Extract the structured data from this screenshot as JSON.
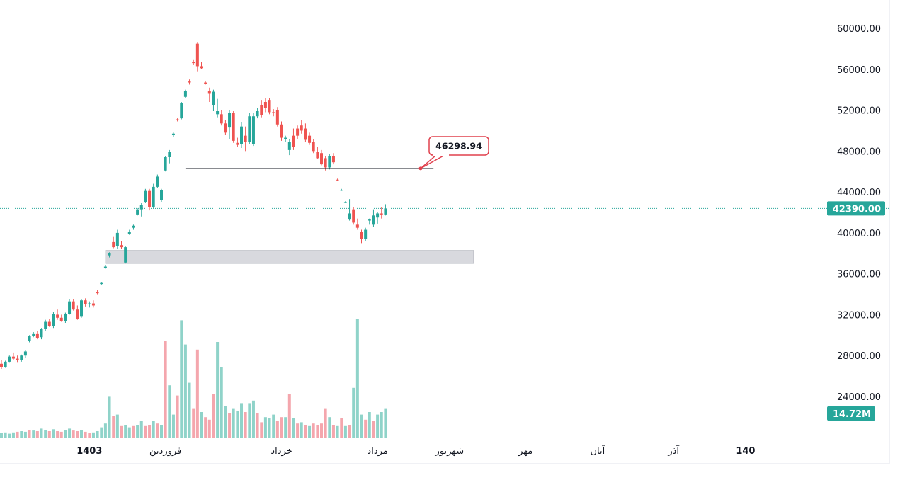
{
  "colors": {
    "up": "#26a69a",
    "down": "#ef5350",
    "up_volume": "#8fd3c9",
    "down_volume": "#f4a6ad",
    "price_line": "#26a69a",
    "callout_border": "#e0404d",
    "zone_fill": "#d8d9de",
    "axis_border": "#e0e3eb",
    "text": "#131722"
  },
  "chart_data": {
    "type": "candlestick",
    "ylim": [
      20000,
      62500
    ],
    "y_ticks": [
      "60000.00",
      "56000.00",
      "52000.00",
      "48000.00",
      "44000.00",
      "40000.00",
      "36000.00",
      "32000.00",
      "28000.00",
      "24000.00"
    ],
    "y_tick_values": [
      60000,
      56000,
      52000,
      48000,
      44000,
      40000,
      36000,
      32000,
      28000,
      24000
    ],
    "x_ticks": [
      {
        "label": "آبان",
        "bold": false,
        "at": -6
      },
      {
        "label": "1403",
        "bold": true,
        "at": 22
      },
      {
        "label": "فروردین",
        "bold": false,
        "at": 41
      },
      {
        "label": "خرداد",
        "bold": false,
        "at": 70
      },
      {
        "label": "مرداد",
        "bold": false,
        "at": 94
      },
      {
        "label": "شهریور",
        "bold": false,
        "at": 112
      },
      {
        "label": "مهر",
        "bold": false,
        "at": 131
      },
      {
        "label": "آبان",
        "bold": false,
        "at": 149
      },
      {
        "label": "آذر",
        "bold": false,
        "at": 168
      },
      {
        "label": "140",
        "bold": true,
        "at": 186
      }
    ],
    "last_price": {
      "value": 42390,
      "label": "42390.00"
    },
    "last_volume": {
      "label": "14.72M"
    },
    "horizontal_line": {
      "value": 46298.94,
      "label": "46298.94",
      "x_from": 46,
      "x_to": 108
    },
    "support_zone": {
      "low": 37000,
      "high": 38300,
      "x_from": 26,
      "x_to": 118
    },
    "candles": [
      [
        0,
        27200,
        27600,
        26700,
        26900
      ],
      [
        1,
        26900,
        27500,
        26800,
        27400
      ],
      [
        2,
        27400,
        28000,
        27300,
        27900
      ],
      [
        3,
        27900,
        28300,
        27600,
        27700
      ],
      [
        4,
        27700,
        28000,
        27300,
        27600
      ],
      [
        5,
        27600,
        28100,
        27400,
        28000
      ],
      [
        6,
        28000,
        28500,
        27800,
        28400
      ],
      [
        7,
        29400,
        30000,
        29300,
        29900
      ],
      [
        8,
        29900,
        30300,
        29800,
        30100
      ],
      [
        9,
        30100,
        30400,
        29600,
        29700
      ],
      [
        10,
        29800,
        30700,
        29600,
        30600
      ],
      [
        11,
        30600,
        31500,
        30400,
        31300
      ],
      [
        12,
        31300,
        31600,
        30800,
        30900
      ],
      [
        13,
        30900,
        32300,
        30700,
        32100
      ],
      [
        14,
        32000,
        32500,
        31500,
        31700
      ],
      [
        15,
        31700,
        32000,
        31300,
        31400
      ],
      [
        16,
        31400,
        32200,
        31200,
        32100
      ],
      [
        17,
        32100,
        33500,
        32000,
        33300
      ],
      [
        18,
        33300,
        33500,
        32400,
        32500
      ],
      [
        19,
        32500,
        32900,
        31500,
        31600
      ],
      [
        20,
        31800,
        33500,
        31700,
        33400
      ],
      [
        21,
        33400,
        33600,
        32800,
        33000
      ],
      [
        22,
        33000,
        33300,
        32700,
        33100
      ],
      [
        23,
        33100,
        33400,
        32700,
        32900
      ],
      [
        24,
        34200,
        34400,
        34000,
        34100
      ],
      [
        25,
        35000,
        35200,
        34900,
        35100
      ],
      [
        26,
        36600,
        36800,
        36500,
        36700
      ],
      [
        27,
        37800,
        38100,
        37600,
        38000
      ],
      [
        28,
        39100,
        39600,
        38500,
        38600
      ],
      [
        29,
        38700,
        40300,
        38400,
        40000
      ],
      [
        30,
        38800,
        39200,
        38400,
        38600
      ],
      [
        31,
        37100,
        38700,
        37000,
        38600
      ],
      [
        32,
        39900,
        40300,
        39800,
        40100
      ],
      [
        33,
        40500,
        40800,
        40300,
        40700
      ],
      [
        34,
        41800,
        42400,
        41700,
        42300
      ],
      [
        35,
        42300,
        42900,
        41600,
        42700
      ],
      [
        36,
        43000,
        44300,
        42900,
        44100
      ],
      [
        37,
        44100,
        44300,
        42200,
        42500
      ],
      [
        38,
        42500,
        44800,
        42400,
        44500
      ],
      [
        39,
        44500,
        45700,
        44400,
        45500
      ],
      [
        40,
        43200,
        44300,
        43000,
        44200
      ],
      [
        41,
        46100,
        47500,
        46000,
        47400
      ],
      [
        42,
        47400,
        48100,
        46800,
        47900
      ],
      [
        43,
        49600,
        49800,
        49400,
        49700
      ],
      [
        44,
        51100,
        51200,
        50900,
        51000
      ],
      [
        45,
        51200,
        52800,
        51100,
        52700
      ],
      [
        46,
        53300,
        54000,
        53200,
        53900
      ],
      [
        47,
        54800,
        55000,
        54500,
        54700
      ],
      [
        48,
        56700,
        56900,
        56400,
        56600
      ],
      [
        49,
        58500,
        58600,
        55800,
        56300
      ],
      [
        50,
        56300,
        56700,
        56000,
        56100
      ],
      [
        51,
        54700,
        54800,
        54500,
        54600
      ],
      [
        52,
        53900,
        54200,
        52800,
        53600
      ],
      [
        53,
        52500,
        54000,
        51900,
        53800
      ],
      [
        54,
        51600,
        53100,
        51300,
        51900
      ],
      [
        55,
        51600,
        52000,
        50500,
        50700
      ],
      [
        56,
        50700,
        51000,
        49600,
        49800
      ],
      [
        57,
        50300,
        52000,
        49200,
        51700
      ],
      [
        58,
        51700,
        51900,
        48800,
        49000
      ],
      [
        59,
        48800,
        49300,
        48400,
        48600
      ],
      [
        60,
        48700,
        50800,
        48300,
        50400
      ],
      [
        61,
        49500,
        50400,
        48000,
        48900
      ],
      [
        62,
        48900,
        51700,
        48700,
        51400
      ],
      [
        63,
        48700,
        51700,
        48500,
        51400
      ],
      [
        64,
        51400,
        52200,
        51200,
        51900
      ],
      [
        65,
        52500,
        53000,
        51300,
        51500
      ],
      [
        66,
        52800,
        53200,
        51800,
        52200
      ],
      [
        67,
        53000,
        53200,
        51600,
        51800
      ],
      [
        68,
        51800,
        52100,
        51400,
        51700
      ],
      [
        69,
        52000,
        52300,
        50400,
        50600
      ],
      [
        70,
        50600,
        50900,
        49000,
        49300
      ],
      [
        71,
        49200,
        49500,
        48900,
        49300
      ],
      [
        72,
        48100,
        49200,
        47600,
        48900
      ],
      [
        73,
        49500,
        50200,
        48100,
        48400
      ],
      [
        74,
        50200,
        50500,
        49200,
        49500
      ],
      [
        75,
        50500,
        51000,
        49700,
        50000
      ],
      [
        76,
        50200,
        50700,
        48900,
        49100
      ],
      [
        77,
        49500,
        49800,
        48600,
        48800
      ],
      [
        78,
        48900,
        49200,
        47800,
        48000
      ],
      [
        79,
        47900,
        48400,
        47200,
        47300
      ],
      [
        80,
        47800,
        48100,
        46600,
        46700
      ],
      [
        81,
        47300,
        47500,
        46100,
        46400
      ],
      [
        82,
        46400,
        47700,
        46200,
        47500
      ],
      [
        83,
        47500,
        47800,
        46700,
        46900
      ],
      [
        84,
        45200,
        45300,
        45100,
        45150
      ],
      [
        85,
        44200,
        44300,
        44100,
        44200
      ],
      [
        86,
        43000,
        43100,
        42900,
        43000
      ],
      [
        87,
        41300,
        43300,
        41200,
        41900
      ],
      [
        88,
        42300,
        42500,
        40800,
        41000
      ],
      [
        89,
        40800,
        41400,
        40300,
        40500
      ],
      [
        90,
        40100,
        40300,
        39000,
        39400
      ],
      [
        91,
        39400,
        40500,
        39200,
        40300
      ],
      [
        92,
        41200,
        41400,
        40800,
        41300
      ],
      [
        93,
        40800,
        42300,
        40600,
        41700
      ],
      [
        94,
        41500,
        42000,
        40900,
        41900
      ],
      [
        95,
        41900,
        42500,
        41400,
        41800
      ],
      [
        96,
        41800,
        42800,
        41700,
        42390
      ]
    ],
    "volumes": [
      [
        0,
        0.35,
        "up"
      ],
      [
        1,
        0.4,
        "up"
      ],
      [
        2,
        0.3,
        "up"
      ],
      [
        3,
        0.4,
        "up"
      ],
      [
        4,
        0.45,
        "down"
      ],
      [
        5,
        0.5,
        "up"
      ],
      [
        6,
        0.45,
        "up"
      ],
      [
        7,
        0.6,
        "down"
      ],
      [
        8,
        0.55,
        "up"
      ],
      [
        9,
        0.5,
        "down"
      ],
      [
        10,
        0.7,
        "up"
      ],
      [
        11,
        0.6,
        "up"
      ],
      [
        12,
        0.5,
        "down"
      ],
      [
        13,
        0.65,
        "up"
      ],
      [
        14,
        0.5,
        "down"
      ],
      [
        15,
        0.45,
        "down"
      ],
      [
        16,
        0.6,
        "up"
      ],
      [
        17,
        0.7,
        "up"
      ],
      [
        18,
        0.55,
        "down"
      ],
      [
        19,
        0.5,
        "down"
      ],
      [
        20,
        0.6,
        "up"
      ],
      [
        21,
        0.45,
        "down"
      ],
      [
        22,
        0.35,
        "down"
      ],
      [
        23,
        0.4,
        "up"
      ],
      [
        24,
        0.5,
        "up"
      ],
      [
        25,
        0.8,
        "up"
      ],
      [
        26,
        1.1,
        "up"
      ],
      [
        27,
        3.2,
        "up"
      ],
      [
        28,
        1.7,
        "down"
      ],
      [
        29,
        1.8,
        "up"
      ],
      [
        30,
        0.9,
        "down"
      ],
      [
        31,
        1.0,
        "up"
      ],
      [
        32,
        0.8,
        "up"
      ],
      [
        33,
        0.9,
        "down"
      ],
      [
        34,
        1.0,
        "up"
      ],
      [
        35,
        1.3,
        "up"
      ],
      [
        36,
        0.9,
        "down"
      ],
      [
        37,
        1.0,
        "down"
      ],
      [
        38,
        1.3,
        "up"
      ],
      [
        39,
        1.1,
        "down"
      ],
      [
        40,
        1.0,
        "up"
      ],
      [
        41,
        7.6,
        "down"
      ],
      [
        42,
        4.1,
        "up"
      ],
      [
        43,
        1.8,
        "up"
      ],
      [
        44,
        3.3,
        "down"
      ],
      [
        45,
        9.2,
        "up"
      ],
      [
        46,
        7.3,
        "up"
      ],
      [
        47,
        4.3,
        "up"
      ],
      [
        48,
        2.3,
        "down"
      ],
      [
        49,
        6.9,
        "down"
      ],
      [
        50,
        2.0,
        "up"
      ],
      [
        51,
        1.6,
        "down"
      ],
      [
        52,
        1.4,
        "down"
      ],
      [
        53,
        3.4,
        "down"
      ],
      [
        54,
        7.5,
        "up"
      ],
      [
        55,
        5.5,
        "up"
      ],
      [
        56,
        2.5,
        "up"
      ],
      [
        57,
        1.9,
        "down"
      ],
      [
        58,
        2.3,
        "up"
      ],
      [
        59,
        2.1,
        "up"
      ],
      [
        60,
        2.7,
        "up"
      ],
      [
        61,
        2.0,
        "down"
      ],
      [
        62,
        2.7,
        "up"
      ],
      [
        63,
        2.9,
        "up"
      ],
      [
        64,
        1.9,
        "down"
      ],
      [
        65,
        1.2,
        "down"
      ],
      [
        66,
        1.6,
        "up"
      ],
      [
        67,
        1.5,
        "up"
      ],
      [
        68,
        1.8,
        "up"
      ],
      [
        69,
        1.3,
        "down"
      ],
      [
        70,
        1.6,
        "down"
      ],
      [
        71,
        1.6,
        "up"
      ],
      [
        72,
        3.4,
        "down"
      ],
      [
        73,
        1.5,
        "up"
      ],
      [
        74,
        1.1,
        "down"
      ],
      [
        75,
        1.2,
        "up"
      ],
      [
        76,
        1.0,
        "down"
      ],
      [
        77,
        0.9,
        "up"
      ],
      [
        78,
        1.1,
        "down"
      ],
      [
        79,
        1.0,
        "down"
      ],
      [
        80,
        1.1,
        "down"
      ],
      [
        81,
        2.3,
        "down"
      ],
      [
        82,
        1.6,
        "up"
      ],
      [
        83,
        1.0,
        "down"
      ],
      [
        84,
        0.9,
        "up"
      ],
      [
        85,
        1.5,
        "down"
      ],
      [
        86,
        0.9,
        "up"
      ],
      [
        87,
        1.0,
        "down"
      ],
      [
        88,
        3.9,
        "up"
      ],
      [
        89,
        9.3,
        "up"
      ],
      [
        90,
        1.8,
        "up"
      ],
      [
        91,
        1.4,
        "down"
      ],
      [
        92,
        2.0,
        "up"
      ],
      [
        93,
        1.3,
        "down"
      ],
      [
        94,
        1.8,
        "up"
      ],
      [
        95,
        2.0,
        "up"
      ],
      [
        96,
        2.3,
        "up"
      ]
    ],
    "volume_max": 10
  }
}
